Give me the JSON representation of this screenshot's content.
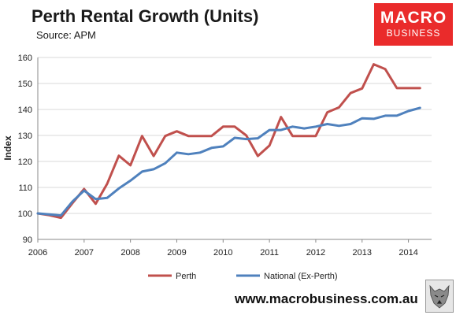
{
  "header": {
    "title": "Perth Rental Growth (Units)",
    "source": "Source: APM"
  },
  "logo": {
    "line1": "MACRO",
    "line2": "BUSINESS",
    "color": "#ea2b2b"
  },
  "footer": {
    "website": "www.macrobusiness.com.au"
  },
  "chart_data": {
    "type": "line",
    "title": "Perth Rental Growth (Units)",
    "ylabel": "Index",
    "xlabel": "",
    "xlim": [
      2006,
      2014.5
    ],
    "ylim": [
      90,
      160
    ],
    "yticks": [
      90,
      100,
      110,
      120,
      130,
      140,
      150,
      160
    ],
    "xticks": [
      2006,
      2007,
      2008,
      2009,
      2010,
      2011,
      2012,
      2013,
      2014
    ],
    "grid": "horizontal",
    "legend": "bottom",
    "series": [
      {
        "name": "Perth",
        "color": "#c0504d",
        "x": [
          2006,
          2006.25,
          2006.5,
          2006.75,
          2007,
          2007.25,
          2007.5,
          2007.75,
          2008,
          2008.25,
          2008.5,
          2008.75,
          2009,
          2009.25,
          2009.5,
          2009.75,
          2010,
          2010.25,
          2010.5,
          2010.75,
          2011,
          2011.25,
          2011.5,
          2011.75,
          2012,
          2012.25,
          2012.5,
          2012.75,
          2013,
          2013.25,
          2013.5,
          2013.75,
          2014,
          2014.25
        ],
        "values": [
          100,
          99.3,
          98.3,
          104,
          109.4,
          103.7,
          111.5,
          122.2,
          118.5,
          129.8,
          122.1,
          129.8,
          131.6,
          129.8,
          129.8,
          129.8,
          133.4,
          133.4,
          130,
          122.1,
          126.1,
          137.1,
          129.8,
          129.8,
          129.8,
          138.9,
          140.8,
          146.3,
          148.1,
          157.4,
          155.5,
          148.2,
          148.2,
          148.2
        ]
      },
      {
        "name": "National (Ex-Perth)",
        "color": "#4f81bd",
        "x": [
          2006,
          2006.25,
          2006.5,
          2006.75,
          2007,
          2007.25,
          2007.5,
          2007.75,
          2008,
          2008.25,
          2008.5,
          2008.75,
          2009,
          2009.25,
          2009.5,
          2009.75,
          2010,
          2010.25,
          2010.5,
          2010.75,
          2011,
          2011.25,
          2011.5,
          2011.75,
          2012,
          2012.25,
          2012.5,
          2012.75,
          2013,
          2013.25,
          2013.5,
          2013.75,
          2014,
          2014.25
        ],
        "values": [
          100,
          99.6,
          99.2,
          104.6,
          108.8,
          105.5,
          106,
          109.6,
          112.6,
          116.1,
          117,
          119.3,
          123.4,
          122.8,
          123.4,
          125.2,
          125.8,
          129.1,
          128.6,
          128.9,
          132.1,
          132.1,
          133.4,
          132.7,
          133.4,
          134.4,
          133.7,
          134.4,
          136.6,
          136.4,
          137.6,
          137.6,
          139.4,
          140.6
        ]
      }
    ]
  }
}
